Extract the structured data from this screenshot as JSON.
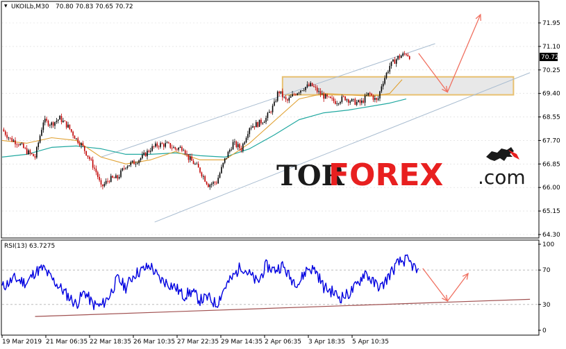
{
  "colors": {
    "price": "#000000",
    "bull_candle": "#000000",
    "bear_candle": "#c00000",
    "ma_fast": "#e0a030",
    "ma_slow": "#20a8a0",
    "channel": "#a8bcd0",
    "zone_fill": "#e8e8e8",
    "zone_border": "#e8c070",
    "arrows": "#f07060",
    "rsi_line": "#0000e0",
    "rsi_trend": "#a05050",
    "grid": "#d8d8d8",
    "watermark_dark": "#1a1a1a",
    "watermark_red": "#e82020"
  },
  "header": {
    "symbol_text": "UKOILb,M30",
    "ohlc_text": "70.80 70.83 70.65 70.72"
  },
  "rsi_header": {
    "text": "RSI(13) 63.7275"
  },
  "watermark": {
    "part1": "TOR",
    "part2": "FOREX",
    "part3": ".com",
    "logo_icon": "bull-bear-icon"
  },
  "chart_data": [
    {
      "type": "candlestick",
      "title": "UKOILb,M30",
      "xlabel": "",
      "ylabel": "",
      "ylim": [
        64.3,
        72.3
      ],
      "y_ticks": [
        "71.95",
        "71.10",
        "70.25",
        "69.40",
        "68.55",
        "67.70",
        "66.85",
        "66.00",
        "65.15",
        "64.30"
      ],
      "current_price": "70.72",
      "x_ticks": [
        "19 Mar 2019",
        "21 Mar 06:35",
        "22 Mar 18:35",
        "26 Mar 10:35",
        "27 Mar 22:35",
        "29 Mar 14:35",
        "2 Apr 06:35",
        "3 Apr 18:35",
        "5 Apr 10:35"
      ],
      "price_path": [
        [
          0,
          68.1
        ],
        [
          2,
          67.75
        ],
        [
          4,
          67.6
        ],
        [
          6,
          67.3
        ],
        [
          8,
          67.1
        ],
        [
          10,
          68.4
        ],
        [
          12,
          68.3
        ],
        [
          14,
          68.5
        ],
        [
          16,
          68.2
        ],
        [
          18,
          67.75
        ],
        [
          19,
          67.6
        ],
        [
          21,
          67.1
        ],
        [
          23,
          66.5
        ],
        [
          24,
          66.0
        ],
        [
          26,
          66.3
        ],
        [
          28,
          66.35
        ],
        [
          30,
          66.8
        ],
        [
          32,
          66.9
        ],
        [
          34,
          67.1
        ],
        [
          36,
          67.4
        ],
        [
          38,
          67.55
        ],
        [
          40,
          67.55
        ],
        [
          42,
          67.4
        ],
        [
          44,
          67.45
        ],
        [
          45,
          67.1
        ],
        [
          47,
          66.8
        ],
        [
          48,
          66.6
        ],
        [
          50,
          66.1
        ],
        [
          52,
          66.2
        ],
        [
          54,
          67.0
        ],
        [
          56,
          67.6
        ],
        [
          58,
          67.4
        ],
        [
          60,
          68.2
        ],
        [
          62,
          68.3
        ],
        [
          64,
          68.5
        ],
        [
          66,
          69.0
        ],
        [
          67,
          69.5
        ],
        [
          69,
          69.1
        ],
        [
          71,
          69.4
        ],
        [
          73,
          69.6
        ],
        [
          75,
          69.7
        ],
        [
          77,
          69.4
        ],
        [
          79,
          69.2
        ],
        [
          81,
          69.1
        ],
        [
          83,
          69.25
        ],
        [
          85,
          69.1
        ],
        [
          87,
          69.05
        ],
        [
          89,
          69.4
        ],
        [
          91,
          69.1
        ],
        [
          92,
          69.7
        ],
        [
          94,
          70.4
        ],
        [
          96,
          70.7
        ],
        [
          98,
          70.85
        ],
        [
          99,
          70.72
        ]
      ],
      "ma_fast": [
        [
          0,
          67.7
        ],
        [
          6,
          67.6
        ],
        [
          12,
          67.8
        ],
        [
          18,
          67.7
        ],
        [
          24,
          67.1
        ],
        [
          30,
          66.85
        ],
        [
          36,
          67.0
        ],
        [
          42,
          67.3
        ],
        [
          48,
          67.0
        ],
        [
          54,
          67.0
        ],
        [
          60,
          67.6
        ],
        [
          66,
          68.4
        ],
        [
          72,
          69.2
        ],
        [
          78,
          69.4
        ],
        [
          84,
          69.35
        ],
        [
          90,
          69.3
        ],
        [
          94,
          69.4
        ],
        [
          97,
          69.9
        ]
      ],
      "ma_slow": [
        [
          0,
          67.1
        ],
        [
          6,
          67.2
        ],
        [
          12,
          67.45
        ],
        [
          18,
          67.5
        ],
        [
          24,
          67.4
        ],
        [
          30,
          67.2
        ],
        [
          36,
          67.2
        ],
        [
          42,
          67.25
        ],
        [
          48,
          67.15
        ],
        [
          54,
          67.1
        ],
        [
          60,
          67.4
        ],
        [
          66,
          67.9
        ],
        [
          72,
          68.45
        ],
        [
          78,
          68.7
        ],
        [
          84,
          68.8
        ],
        [
          90,
          68.95
        ],
        [
          94,
          69.05
        ],
        [
          98,
          69.2
        ]
      ],
      "channel_upper": [
        [
          24,
          67.1
        ],
        [
          105,
          71.2
        ]
      ],
      "channel_lower": [
        [
          37,
          64.75
        ],
        [
          128,
          70.15
        ]
      ],
      "zone": {
        "x_from": 68,
        "x_to": 124,
        "y_low": 69.35,
        "y_high": 70.0
      },
      "arrows": [
        {
          "from": [
            101,
            70.85
          ],
          "to": [
            108,
            69.45
          ]
        },
        {
          "from": [
            108,
            69.45
          ],
          "to": [
            116,
            72.25
          ]
        }
      ]
    },
    {
      "type": "line",
      "title": "RSI(13) 63.7275",
      "xlabel": "",
      "ylabel": "",
      "ylim": [
        0,
        100
      ],
      "y_ticks": [
        "100",
        "70",
        "30",
        "0"
      ],
      "levels": [
        70,
        30
      ],
      "rsi_path": [
        [
          0,
          50
        ],
        [
          3,
          60
        ],
        [
          6,
          55
        ],
        [
          8,
          68
        ],
        [
          10,
          72
        ],
        [
          12,
          60
        ],
        [
          14,
          50
        ],
        [
          16,
          40
        ],
        [
          18,
          30
        ],
        [
          20,
          45
        ],
        [
          22,
          30
        ],
        [
          24,
          28
        ],
        [
          26,
          40
        ],
        [
          28,
          60
        ],
        [
          30,
          50
        ],
        [
          32,
          65
        ],
        [
          34,
          70
        ],
        [
          36,
          75
        ],
        [
          38,
          60
        ],
        [
          40,
          55
        ],
        [
          42,
          50
        ],
        [
          44,
          40
        ],
        [
          46,
          45
        ],
        [
          48,
          35
        ],
        [
          50,
          38
        ],
        [
          52,
          30
        ],
        [
          54,
          50
        ],
        [
          56,
          62
        ],
        [
          58,
          75
        ],
        [
          60,
          65
        ],
        [
          62,
          55
        ],
        [
          64,
          75
        ],
        [
          66,
          70
        ],
        [
          68,
          75
        ],
        [
          70,
          60
        ],
        [
          72,
          55
        ],
        [
          74,
          72
        ],
        [
          76,
          70
        ],
        [
          78,
          50
        ],
        [
          80,
          45
        ],
        [
          82,
          38
        ],
        [
          84,
          42
        ],
        [
          86,
          52
        ],
        [
          88,
          68
        ],
        [
          90,
          55
        ],
        [
          92,
          50
        ],
        [
          94,
          65
        ],
        [
          96,
          78
        ],
        [
          98,
          82
        ],
        [
          100,
          73
        ],
        [
          101,
          65
        ]
      ],
      "trend": [
        [
          8,
          16
        ],
        [
          128,
          36
        ]
      ],
      "arrows": [
        {
          "from": [
            102,
            72
          ],
          "to": [
            108,
            34
          ]
        },
        {
          "from": [
            108,
            34
          ],
          "to": [
            113,
            66
          ]
        }
      ]
    }
  ]
}
